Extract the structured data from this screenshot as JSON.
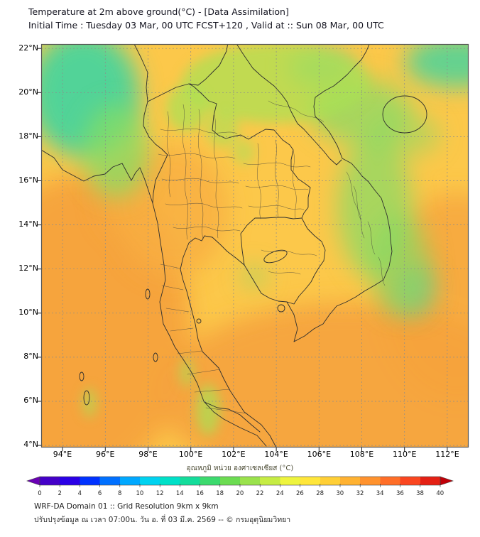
{
  "header": {
    "title": "Temperature at 2m above ground(°C) - [Data Assimilation]",
    "subtitle": "Initial Time : Tuesday 03 Mar, 00 UTC FCST+120 , Valid at :: Sun 08 Mar, 00 UTC"
  },
  "map": {
    "lat_ticks": [
      "22°N",
      "20°N",
      "18°N",
      "16°N",
      "14°N",
      "12°N",
      "10°N",
      "8°N",
      "6°N",
      "4°N"
    ],
    "lon_ticks": [
      "94°E",
      "96°E",
      "98°E",
      "100°E",
      "102°E",
      "104°E",
      "106°E",
      "108°E",
      "110°E",
      "112°E"
    ],
    "palette": {
      "land_yellow": "#fcc84a",
      "sea_orange": "#f5a23d",
      "warm_orange": "#f8ae41",
      "cool_teal": "#49d49c",
      "cool_green": "#84dc66",
      "mild_green": "#a8e156"
    }
  },
  "colorbar": {
    "label": "อุณหภูมิ หน่วย องศาเซลเซียส (°C)",
    "units": "°C",
    "min": 0,
    "max": 40,
    "step": 2,
    "ticks": [
      "0",
      "2",
      "4",
      "6",
      "8",
      "10",
      "12",
      "14",
      "16",
      "18",
      "20",
      "22",
      "24",
      "26",
      "28",
      "30",
      "32",
      "34",
      "36",
      "38",
      "40"
    ],
    "colors": [
      "#4400c8",
      "#2a00e6",
      "#0032ff",
      "#0070ff",
      "#00a8ff",
      "#00d2f0",
      "#00e0c8",
      "#14dc9b",
      "#3cda6e",
      "#6cdc52",
      "#9ae24c",
      "#c6ec44",
      "#eef43e",
      "#ffe63a",
      "#ffcf36",
      "#ffb232",
      "#ff922e",
      "#ff6e28",
      "#fa4620",
      "#e42014"
    ],
    "arrow_left_color": "#6a00b4",
    "arrow_right_color": "#c00008"
  },
  "footer": {
    "line1": "WRF-DA Domain 01 :: Grid Resolution 9km x 9km",
    "line2": "ปรับปรุงข้อมูล ณ เวลา 07:00น. วัน อ. ที่ 03 มี.ค. 2569 -- © กรมอุตุนิยมวิทยา"
  }
}
